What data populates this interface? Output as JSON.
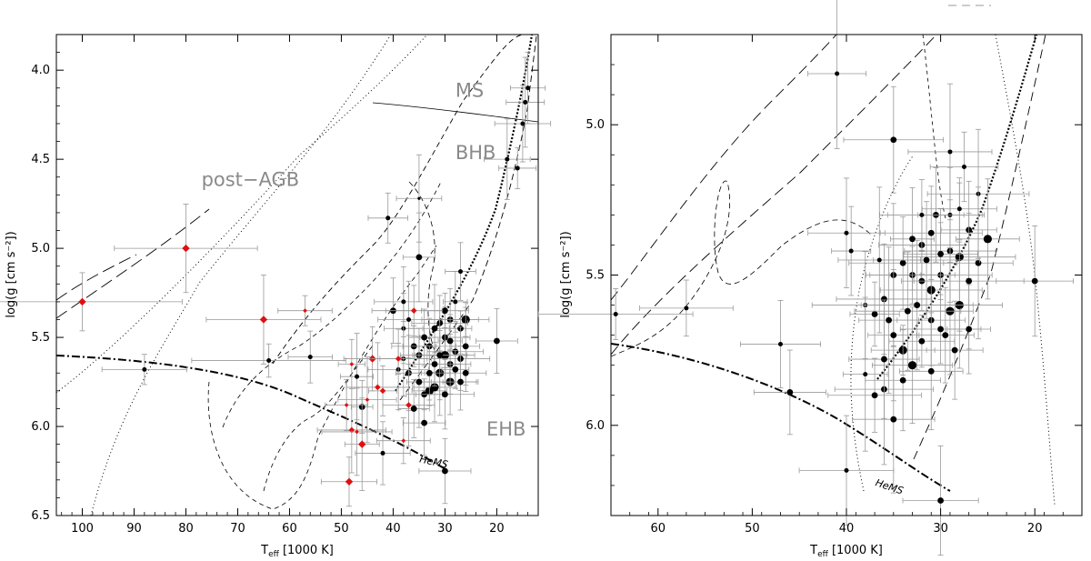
{
  "chart_data": [
    {
      "type": "scatter",
      "title": "",
      "xlabel": {
        "main": "T",
        "sub": "eff",
        "unit": " [1000 K]"
      },
      "ylabel": "log(g [cm s⁻²])",
      "xlim": [
        105,
        12
      ],
      "ylim": [
        6.5,
        3.8
      ],
      "x_ticks": [
        100,
        90,
        80,
        70,
        60,
        50,
        40,
        30,
        20
      ],
      "y_ticks": [
        4.0,
        4.5,
        5.0,
        5.5,
        6.0,
        6.5
      ],
      "x_tick_labels": [
        "100",
        "90",
        "80",
        "70",
        "60",
        "50",
        "40",
        "30",
        "20"
      ],
      "y_tick_labels": [
        "4.0",
        "4.5",
        "5.0",
        "5.5",
        "6.0",
        "6.5"
      ],
      "region_labels": [
        {
          "text": "MS",
          "x": 28,
          "y": 4.15
        },
        {
          "text": "BHB",
          "x": 28,
          "y": 4.5
        },
        {
          "text": "post−AGB",
          "x": 77,
          "y": 4.65
        },
        {
          "text": "EHB",
          "x": 22,
          "y": 6.05
        },
        {
          "text": "HeMS",
          "x": 35,
          "y": 6.2
        }
      ],
      "series": [
        {
          "points": [
            {
              "x": 88,
              "y": 5.68,
              "size": 2
            },
            {
              "x": 64,
              "y": 5.63,
              "size": 2
            },
            {
              "x": 56,
              "y": 5.61,
              "size": 2
            },
            {
              "x": 41,
              "y": 4.83,
              "size": 2
            },
            {
              "x": 35,
              "y": 5.05,
              "size": 3
            },
            {
              "x": 42,
              "y": 6.15,
              "size": 2
            },
            {
              "x": 30,
              "y": 6.25,
              "size": 3
            },
            {
              "x": 20,
              "y": 5.52,
              "size": 3
            },
            {
              "x": 40,
              "y": 5.35,
              "size": 3
            },
            {
              "x": 34,
              "y": 5.98,
              "size": 3
            },
            {
              "x": 46,
              "y": 5.89,
              "size": 3
            },
            {
              "x": 35,
              "y": 4.72,
              "size": 1
            },
            {
              "x": 18,
              "y": 4.5,
              "size": 2
            },
            {
              "x": 16,
              "y": 4.55,
              "size": 2
            },
            {
              "x": 15,
              "y": 4.3,
              "size": 2
            },
            {
              "x": 14,
              "y": 4.1,
              "size": 2
            },
            {
              "x": 14.5,
              "y": 4.18,
              "size": 2
            },
            {
              "x": 27,
              "y": 5.13,
              "size": 2
            },
            {
              "x": 32,
              "y": 5.45,
              "size": 3
            },
            {
              "x": 30,
              "y": 5.5,
              "size": 3
            },
            {
              "x": 29,
              "y": 5.4,
              "size": 3
            },
            {
              "x": 28,
              "y": 5.58,
              "size": 3
            },
            {
              "x": 27,
              "y": 5.45,
              "size": 3
            },
            {
              "x": 26,
              "y": 5.4,
              "size": 4
            },
            {
              "x": 30,
              "y": 5.6,
              "size": 4
            },
            {
              "x": 31,
              "y": 5.7,
              "size": 4
            },
            {
              "x": 29,
              "y": 5.75,
              "size": 4
            },
            {
              "x": 28,
              "y": 5.68,
              "size": 3
            },
            {
              "x": 27,
              "y": 5.62,
              "size": 3
            },
            {
              "x": 26,
              "y": 5.55,
              "size": 3
            },
            {
              "x": 33,
              "y": 5.8,
              "size": 4
            },
            {
              "x": 32,
              "y": 5.78,
              "size": 4
            },
            {
              "x": 34,
              "y": 5.82,
              "size": 3
            },
            {
              "x": 35,
              "y": 5.6,
              "size": 3
            },
            {
              "x": 36,
              "y": 5.55,
              "size": 3
            },
            {
              "x": 37,
              "y": 5.7,
              "size": 3
            },
            {
              "x": 38,
              "y": 5.62,
              "size": 2
            },
            {
              "x": 39,
              "y": 5.68,
              "size": 2
            },
            {
              "x": 36,
              "y": 5.9,
              "size": 3
            },
            {
              "x": 34,
              "y": 5.5,
              "size": 3
            },
            {
              "x": 33,
              "y": 5.55,
              "size": 3
            },
            {
              "x": 31,
              "y": 5.42,
              "size": 3
            },
            {
              "x": 30,
              "y": 5.35,
              "size": 3
            },
            {
              "x": 28,
              "y": 5.3,
              "size": 2
            },
            {
              "x": 29,
              "y": 5.65,
              "size": 3
            },
            {
              "x": 31,
              "y": 5.6,
              "size": 3
            },
            {
              "x": 32,
              "y": 5.65,
              "size": 3
            },
            {
              "x": 35,
              "y": 5.75,
              "size": 3
            },
            {
              "x": 38,
              "y": 5.45,
              "size": 2
            },
            {
              "x": 37,
              "y": 5.4,
              "size": 2
            },
            {
              "x": 30,
              "y": 5.82,
              "size": 3
            },
            {
              "x": 33,
              "y": 5.7,
              "size": 3
            },
            {
              "x": 27,
              "y": 5.75,
              "size": 3
            },
            {
              "x": 26,
              "y": 5.7,
              "size": 3
            },
            {
              "x": 29,
              "y": 5.52,
              "size": 3
            },
            {
              "x": 38,
              "y": 5.3,
              "size": 2
            },
            {
              "x": 47,
              "y": 5.72,
              "size": 2
            }
          ]
        },
        {
          "color": "#e01010",
          "points": [
            {
              "x": 100,
              "y": 5.3,
              "size": 3
            },
            {
              "x": 80,
              "y": 5.0,
              "size": 3
            },
            {
              "x": 65,
              "y": 5.4,
              "size": 3
            },
            {
              "x": 57,
              "y": 5.35,
              "size": 1
            },
            {
              "x": 48,
              "y": 5.65,
              "size": 1
            },
            {
              "x": 49,
              "y": 5.88,
              "size": 1
            },
            {
              "x": 48,
              "y": 6.02,
              "size": 2
            },
            {
              "x": 46,
              "y": 6.1,
              "size": 3
            },
            {
              "x": 47,
              "y": 6.03,
              "size": 1
            },
            {
              "x": 44,
              "y": 5.62,
              "size": 3
            },
            {
              "x": 43,
              "y": 5.78,
              "size": 2
            },
            {
              "x": 42,
              "y": 5.8,
              "size": 2
            },
            {
              "x": 45,
              "y": 5.85,
              "size": 1
            },
            {
              "x": 39,
              "y": 5.62,
              "size": 2
            },
            {
              "x": 38,
              "y": 6.08,
              "size": 1
            },
            {
              "x": 37,
              "y": 5.88,
              "size": 2
            },
            {
              "x": 36,
              "y": 5.35,
              "size": 2
            },
            {
              "x": 48.5,
              "y": 6.31,
              "size": 3
            }
          ]
        }
      ]
    },
    {
      "type": "scatter",
      "title": "",
      "xlabel": {
        "main": "T",
        "sub": "eff",
        "unit": " [1000 K]"
      },
      "ylabel": "log(g [cm s⁻²])",
      "xlim": [
        65,
        15
      ],
      "ylim": [
        6.3,
        4.7
      ],
      "x_ticks": [
        60,
        50,
        40,
        30,
        20
      ],
      "y_ticks": [
        5.0,
        5.5,
        6.0
      ],
      "x_tick_labels": [
        "60",
        "50",
        "40",
        "30",
        "20"
      ],
      "y_tick_labels": [
        "5.0",
        "5.5",
        "6.0"
      ],
      "region_labels": [
        {
          "text": "HeMS",
          "x": 37,
          "y": 6.2
        }
      ],
      "series": [
        {
          "points": [
            {
              "x": 64.5,
              "y": 5.63,
              "size": 2
            },
            {
              "x": 57,
              "y": 5.61,
              "size": 2
            },
            {
              "x": 47,
              "y": 5.73,
              "size": 2
            },
            {
              "x": 46,
              "y": 5.89,
              "size": 3
            },
            {
              "x": 41,
              "y": 4.83,
              "size": 2
            },
            {
              "x": 35,
              "y": 5.05,
              "size": 3
            },
            {
              "x": 40,
              "y": 6.15,
              "size": 2
            },
            {
              "x": 30,
              "y": 6.25,
              "size": 3
            },
            {
              "x": 20,
              "y": 5.52,
              "size": 3
            },
            {
              "x": 40,
              "y": 5.36,
              "size": 2
            },
            {
              "x": 39.5,
              "y": 5.42,
              "size": 2
            },
            {
              "x": 35,
              "y": 5.98,
              "size": 3
            },
            {
              "x": 29,
              "y": 5.09,
              "size": 2
            },
            {
              "x": 27.5,
              "y": 5.14,
              "size": 2
            },
            {
              "x": 26,
              "y": 5.23,
              "size": 2
            },
            {
              "x": 25,
              "y": 5.38,
              "size": 4
            },
            {
              "x": 26,
              "y": 5.46,
              "size": 3
            },
            {
              "x": 27,
              "y": 5.35,
              "size": 3
            },
            {
              "x": 28,
              "y": 5.44,
              "size": 4
            },
            {
              "x": 29,
              "y": 5.42,
              "size": 3
            },
            {
              "x": 30,
              "y": 5.5,
              "size": 3
            },
            {
              "x": 31,
              "y": 5.55,
              "size": 4
            },
            {
              "x": 32,
              "y": 5.52,
              "size": 3
            },
            {
              "x": 33,
              "y": 5.5,
              "size": 3
            },
            {
              "x": 34,
              "y": 5.46,
              "size": 3
            },
            {
              "x": 35,
              "y": 5.5,
              "size": 3
            },
            {
              "x": 36,
              "y": 5.58,
              "size": 3
            },
            {
              "x": 37,
              "y": 5.63,
              "size": 3
            },
            {
              "x": 38,
              "y": 5.6,
              "size": 2
            },
            {
              "x": 35,
              "y": 5.7,
              "size": 3
            },
            {
              "x": 34,
              "y": 5.75,
              "size": 4
            },
            {
              "x": 33,
              "y": 5.8,
              "size": 4
            },
            {
              "x": 32,
              "y": 5.72,
              "size": 3
            },
            {
              "x": 31,
              "y": 5.65,
              "size": 3
            },
            {
              "x": 30,
              "y": 5.68,
              "size": 3
            },
            {
              "x": 29,
              "y": 5.62,
              "size": 4
            },
            {
              "x": 28,
              "y": 5.6,
              "size": 4
            },
            {
              "x": 27,
              "y": 5.52,
              "size": 3
            },
            {
              "x": 28.5,
              "y": 5.75,
              "size": 3
            },
            {
              "x": 29.5,
              "y": 5.7,
              "size": 3
            },
            {
              "x": 30.5,
              "y": 5.3,
              "size": 3
            },
            {
              "x": 31,
              "y": 5.36,
              "size": 3
            },
            {
              "x": 32,
              "y": 5.4,
              "size": 3
            },
            {
              "x": 33,
              "y": 5.38,
              "size": 3
            },
            {
              "x": 34,
              "y": 5.85,
              "size": 3
            },
            {
              "x": 36,
              "y": 5.88,
              "size": 3
            },
            {
              "x": 37,
              "y": 5.9,
              "size": 3
            },
            {
              "x": 38,
              "y": 5.83,
              "size": 2
            },
            {
              "x": 36,
              "y": 5.78,
              "size": 3
            },
            {
              "x": 32.5,
              "y": 5.6,
              "size": 3
            },
            {
              "x": 31.5,
              "y": 5.45,
              "size": 3
            },
            {
              "x": 30,
              "y": 5.43,
              "size": 3
            },
            {
              "x": 29,
              "y": 5.3,
              "size": 2
            },
            {
              "x": 28,
              "y": 5.28,
              "size": 2
            },
            {
              "x": 27,
              "y": 5.68,
              "size": 3
            },
            {
              "x": 33.5,
              "y": 5.62,
              "size": 3
            },
            {
              "x": 35.5,
              "y": 5.65,
              "size": 3
            },
            {
              "x": 31,
              "y": 5.82,
              "size": 3
            },
            {
              "x": 32,
              "y": 5.3,
              "size": 2
            },
            {
              "x": 36.5,
              "y": 5.45,
              "size": 2
            }
          ]
        }
      ]
    }
  ]
}
